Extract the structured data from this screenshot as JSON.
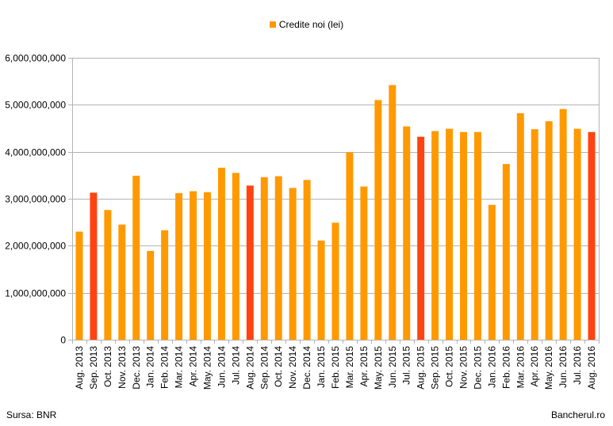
{
  "legend": {
    "label": "Credite noi (lei)"
  },
  "footer": {
    "source": "Sursa: BNR",
    "brand": "Bancherul.ro"
  },
  "colors": {
    "default": "#ff9900",
    "highlight": "#ff4411",
    "grid": "#b3b3b3"
  },
  "chart_data": {
    "type": "bar",
    "categories": [
      "Aug. 2013",
      "Sep. 2013",
      "Oct. 2013",
      "Nov. 2013",
      "Dec. 2013",
      "Jan. 2014",
      "Feb. 2014",
      "Mar. 2014",
      "Apr. 2014",
      "May. 2014",
      "Jun. 2014",
      "Jul. 2014",
      "Aug. 2014",
      "Sep. 2014",
      "Oct. 2014",
      "Nov. 2014",
      "Dec. 2014",
      "Jan. 2015",
      "Feb. 2015",
      "Mar. 2015",
      "Apr. 2015",
      "May. 2015",
      "Jun. 2015",
      "Jul. 2015",
      "Aug. 2015",
      "Sep. 2015",
      "Oct. 2015",
      "Nov. 2015",
      "Dec. 2015",
      "Jan. 2016",
      "Feb. 2016",
      "Mar. 2016",
      "Apr. 2016",
      "May. 2016",
      "Jun. 2016",
      "Jul. 2016",
      "Aug. 2016"
    ],
    "series": [
      {
        "name": "Credite noi (lei)",
        "values": [
          2300000000,
          3130000000,
          2760000000,
          2450000000,
          3490000000,
          1890000000,
          2330000000,
          3120000000,
          3160000000,
          3140000000,
          3660000000,
          3550000000,
          3280000000,
          3460000000,
          3480000000,
          3230000000,
          3400000000,
          2110000000,
          2490000000,
          3990000000,
          3260000000,
          5100000000,
          5420000000,
          4540000000,
          4320000000,
          4440000000,
          4490000000,
          4420000000,
          4420000000,
          2870000000,
          3740000000,
          4820000000,
          4480000000,
          4650000000,
          4910000000,
          4490000000,
          4420000000
        ]
      }
    ],
    "highlighted": [
      "Sep. 2013",
      "Aug. 2014",
      "Aug. 2015",
      "Aug. 2016"
    ],
    "yticks": [
      0,
      1000000000,
      2000000000,
      3000000000,
      4000000000,
      5000000000,
      6000000000
    ],
    "ytick_labels": [
      "0",
      "1,000,000,000",
      "2,000,000,000",
      "3,000,000,000",
      "4,000,000,000",
      "5,000,000,000",
      "6,000,000,000"
    ],
    "ylim": [
      0,
      6000000000
    ],
    "grid": true,
    "legend_position": "top-center"
  }
}
